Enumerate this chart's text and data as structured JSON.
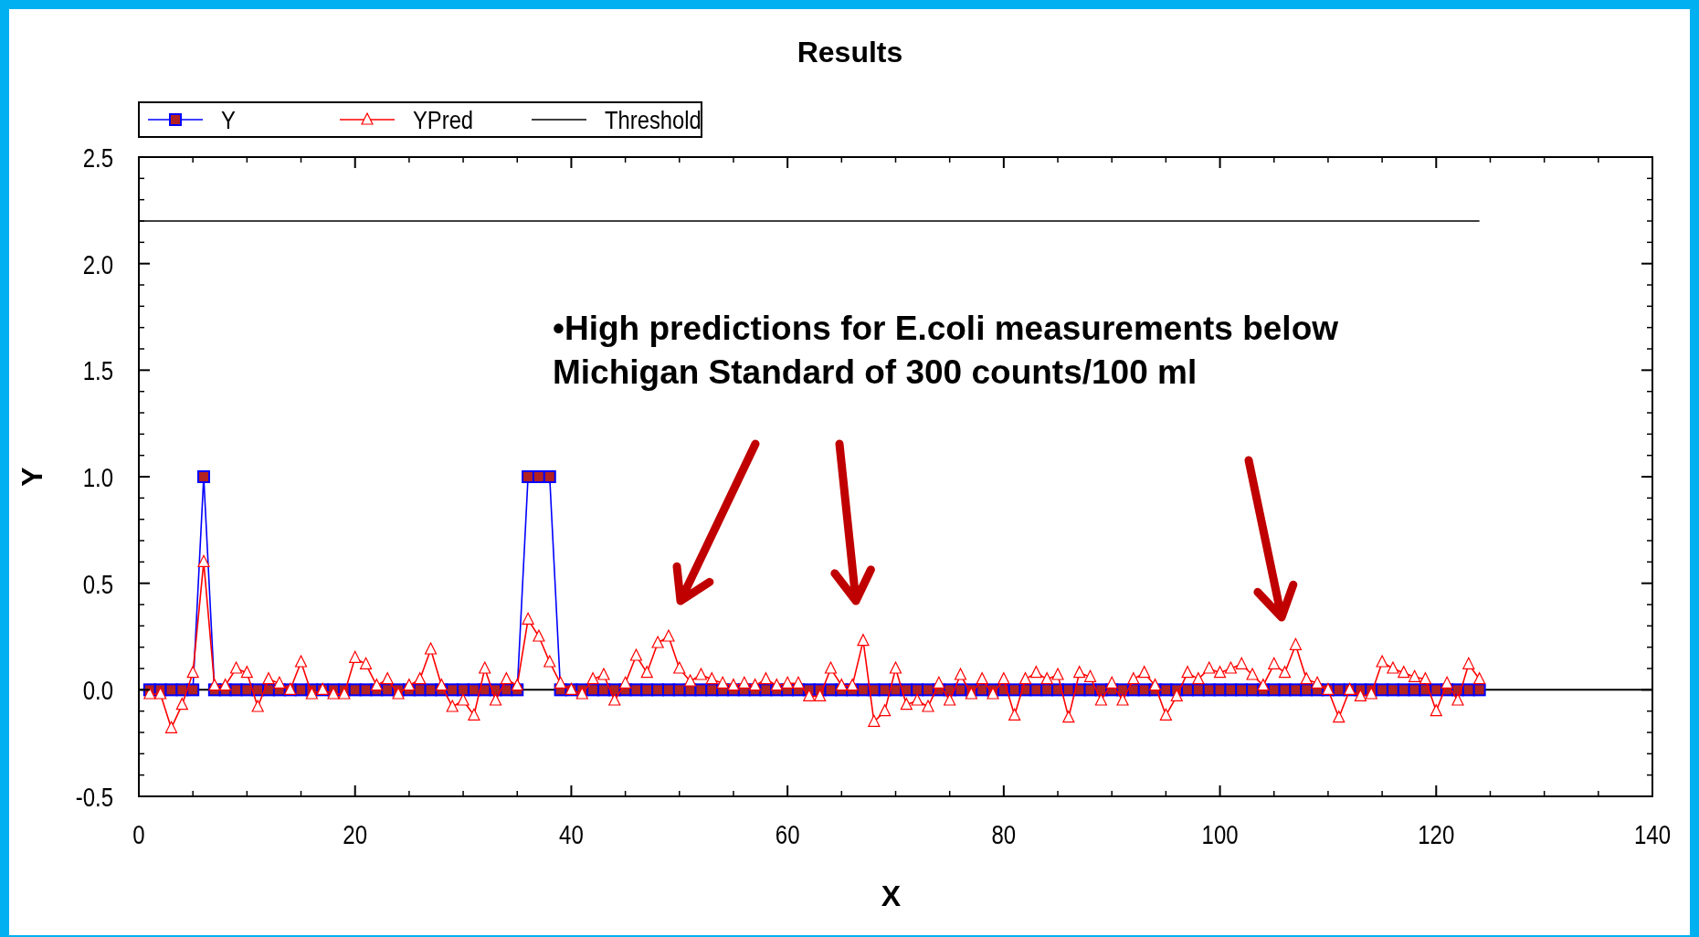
{
  "chart_data": {
    "type": "line",
    "title": "Results",
    "xlabel": "X",
    "ylabel": "Y",
    "xlim": [
      0,
      140
    ],
    "xticks": [
      0,
      20,
      40,
      60,
      80,
      100,
      120,
      140
    ],
    "ylim": [
      -0.5,
      2.5
    ],
    "yticks": [
      {
        "value": -0.5,
        "label": "-0.5"
      },
      {
        "value": 0,
        "label": "0.0"
      },
      {
        "value": 0.5,
        "label": "0.5"
      },
      {
        "value": 1,
        "label": "1.0"
      },
      {
        "value": 1.5,
        "label": "1.5"
      },
      {
        "value": 2,
        "label": "2.0"
      },
      {
        "value": 2.5,
        "label": "2.5"
      }
    ],
    "grid": false,
    "legend": "top left",
    "annotations": [
      "•High predictions for E.coli measurements below Michigan Standard of 300 counts/100 ml"
    ],
    "ref_lines": [
      {
        "axis": "y",
        "value": 0,
        "color": "#000000"
      }
    ],
    "series": [
      {
        "name": "Y",
        "color": "#0000ff",
        "marker": "square",
        "x": [
          1,
          2,
          3,
          4,
          5,
          6,
          7,
          8,
          9,
          10,
          11,
          12,
          13,
          14,
          15,
          16,
          17,
          18,
          19,
          20,
          21,
          22,
          23,
          24,
          25,
          26,
          27,
          28,
          29,
          30,
          31,
          32,
          33,
          34,
          35,
          36,
          37,
          38,
          39,
          40,
          41,
          42,
          43,
          44,
          45,
          46,
          47,
          48,
          49,
          50,
          51,
          52,
          53,
          54,
          55,
          56,
          57,
          58,
          59,
          60,
          61,
          62,
          63,
          64,
          65,
          66,
          67,
          68,
          69,
          70,
          71,
          72,
          73,
          74,
          75,
          76,
          77,
          78,
          79,
          80,
          81,
          82,
          83,
          84,
          85,
          86,
          87,
          88,
          89,
          90,
          91,
          92,
          93,
          94,
          95,
          96,
          97,
          98,
          99,
          100,
          101,
          102,
          103,
          104,
          105,
          106,
          107,
          108,
          109,
          110,
          111,
          112,
          113,
          114,
          115,
          116,
          117,
          118,
          119,
          120,
          121,
          122,
          123,
          124
        ],
        "values": [
          0,
          0,
          0,
          0,
          0,
          1,
          0,
          0,
          0,
          0,
          0,
          0,
          0,
          0,
          0,
          0,
          0,
          0,
          0,
          0,
          0,
          0,
          0,
          0,
          0,
          0,
          0,
          0,
          0,
          0,
          0,
          0,
          0,
          0,
          0,
          1,
          1,
          1,
          0,
          0,
          0,
          0,
          0,
          0,
          0,
          0,
          0,
          0,
          0,
          0,
          0,
          0,
          0,
          0,
          0,
          0,
          0,
          0,
          0,
          0,
          0,
          0,
          0,
          0,
          0,
          0,
          0,
          0,
          0,
          0,
          0,
          0,
          0,
          0,
          0,
          0,
          0,
          0,
          0,
          0,
          0,
          0,
          0,
          0,
          0,
          0,
          0,
          0,
          0,
          0,
          0,
          0,
          0,
          0,
          0,
          0,
          0,
          0,
          0,
          0,
          0,
          0,
          0,
          0,
          0,
          0,
          0,
          0,
          0,
          0,
          0,
          0,
          0,
          0,
          0,
          0,
          0,
          0,
          0,
          0,
          0,
          0,
          0,
          0
        ]
      },
      {
        "name": "YPred",
        "color": "#ff0000",
        "marker": "triangle",
        "x": [
          1,
          2,
          3,
          4,
          5,
          6,
          7,
          8,
          9,
          10,
          11,
          12,
          13,
          14,
          15,
          16,
          17,
          18,
          19,
          20,
          21,
          22,
          23,
          24,
          25,
          26,
          27,
          28,
          29,
          30,
          31,
          32,
          33,
          34,
          35,
          36,
          37,
          38,
          39,
          40,
          41,
          42,
          43,
          44,
          45,
          46,
          47,
          48,
          49,
          50,
          51,
          52,
          53,
          54,
          55,
          56,
          57,
          58,
          59,
          60,
          61,
          62,
          63,
          64,
          65,
          66,
          67,
          68,
          69,
          70,
          71,
          72,
          73,
          74,
          75,
          76,
          77,
          78,
          79,
          80,
          81,
          82,
          83,
          84,
          85,
          86,
          87,
          88,
          89,
          90,
          91,
          92,
          93,
          94,
          95,
          96,
          97,
          98,
          99,
          100,
          101,
          102,
          103,
          104,
          105,
          106,
          107,
          108,
          109,
          110,
          111,
          112,
          113,
          114,
          115,
          116,
          117,
          118,
          119,
          120,
          121,
          122,
          123,
          124
        ],
        "values": [
          -0.02,
          -0.02,
          -0.18,
          -0.07,
          0.08,
          0.6,
          0.02,
          0.02,
          0.1,
          0.08,
          -0.08,
          0.05,
          0.03,
          0.0,
          0.13,
          -0.02,
          0.0,
          -0.02,
          -0.02,
          0.15,
          0.12,
          0.02,
          0.05,
          -0.02,
          0.02,
          0.05,
          0.19,
          0.02,
          -0.08,
          -0.05,
          -0.12,
          0.1,
          -0.05,
          0.05,
          0.02,
          0.33,
          0.25,
          0.13,
          0.03,
          0.0,
          -0.02,
          0.05,
          0.07,
          -0.05,
          0.03,
          0.16,
          0.08,
          0.22,
          0.25,
          0.1,
          0.04,
          0.07,
          0.05,
          0.03,
          0.02,
          0.03,
          0.02,
          0.05,
          0.02,
          0.03,
          0.03,
          -0.03,
          -0.03,
          0.1,
          0.02,
          0.02,
          0.23,
          -0.15,
          -0.1,
          0.1,
          -0.07,
          -0.05,
          -0.08,
          0.03,
          -0.05,
          0.07,
          -0.02,
          0.05,
          -0.02,
          0.05,
          -0.12,
          0.05,
          0.08,
          0.05,
          0.07,
          -0.13,
          0.08,
          0.06,
          -0.05,
          0.03,
          -0.05,
          0.05,
          0.08,
          0.02,
          -0.12,
          -0.03,
          0.08,
          0.05,
          0.1,
          0.08,
          0.1,
          0.12,
          0.07,
          0.02,
          0.12,
          0.08,
          0.21,
          0.05,
          0.03,
          0.0,
          -0.13,
          0.0,
          -0.03,
          -0.02,
          0.13,
          0.1,
          0.08,
          0.06,
          0.05,
          -0.1,
          0.03,
          -0.05,
          0.12,
          0.05
        ]
      },
      {
        "name": "Threshold",
        "color": "#000000",
        "marker": "none",
        "x": [
          0,
          124
        ],
        "values": [
          2.2,
          2.2
        ]
      }
    ]
  }
}
